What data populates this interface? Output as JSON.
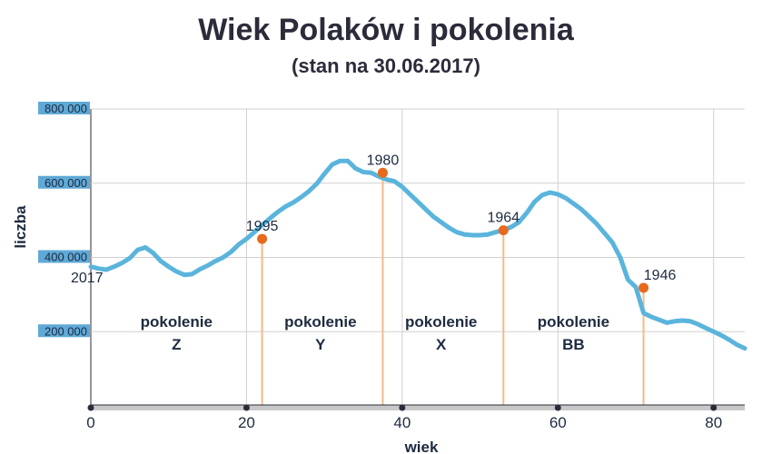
{
  "chart_data": {
    "type": "line",
    "title": "Wiek Polaków i pokolenia",
    "subtitle": "(stan na 30.06.2017)",
    "xlabel": "wiek",
    "ylabel": "liczba",
    "xlim": [
      0,
      84
    ],
    "ylim": [
      0,
      800000
    ],
    "xticks": [
      "0",
      "20",
      "40",
      "60",
      "80"
    ],
    "yticks": [
      "200 000",
      "400 000",
      "600 000",
      "800 000"
    ],
    "grid": true,
    "series": [
      {
        "x": [
          0,
          1,
          2,
          3,
          4,
          5,
          6,
          7,
          8,
          9,
          10,
          11,
          12,
          13,
          14,
          15,
          16,
          17,
          18,
          19,
          20,
          21,
          22,
          23,
          24,
          25,
          26,
          27,
          28,
          29,
          30,
          31,
          32,
          33,
          34,
          35,
          36,
          37,
          38,
          39,
          40,
          41,
          42,
          43,
          44,
          45,
          46,
          47,
          48,
          49,
          50,
          51,
          52,
          53,
          54,
          55,
          56,
          57,
          58,
          59,
          60,
          61,
          62,
          63,
          64,
          65,
          66,
          67,
          68,
          69,
          70,
          71,
          72,
          73,
          74,
          75,
          76,
          77,
          78,
          79,
          80,
          81,
          82,
          83,
          84
        ],
        "y": [
          375000,
          370000,
          367000,
          375000,
          385000,
          398000,
          420000,
          427000,
          412000,
          390000,
          375000,
          362000,
          353000,
          355000,
          368000,
          378000,
          390000,
          400000,
          415000,
          435000,
          450000,
          468000,
          487000,
          505000,
          522000,
          537000,
          548000,
          562000,
          578000,
          598000,
          625000,
          650000,
          660000,
          660000,
          640000,
          630000,
          628000,
          618000,
          610000,
          605000,
          590000,
          570000,
          550000,
          530000,
          510000,
          495000,
          480000,
          468000,
          462000,
          460000,
          460000,
          462000,
          468000,
          474000,
          482000,
          495000,
          520000,
          550000,
          568000,
          575000,
          570000,
          560000,
          545000,
          530000,
          510000,
          490000,
          465000,
          440000,
          400000,
          340000,
          320000,
          250000,
          240000,
          232000,
          224000,
          228000,
          230000,
          228000,
          220000,
          210000,
          200000,
          190000,
          178000,
          165000,
          155000
        ],
        "color": "#5ab4dc"
      }
    ],
    "markers": [
      {
        "label": "1995",
        "x": 22,
        "y": 450000
      },
      {
        "label": "1980",
        "x": 37.5,
        "y": 628000
      },
      {
        "label": "1964",
        "x": 53,
        "y": 473000
      },
      {
        "label": "1946",
        "x": 71,
        "y": 318000
      }
    ],
    "start_label": "2017",
    "generations": [
      {
        "line1": "pokolenie",
        "line2": "Z",
        "x": 11
      },
      {
        "line1": "pokolenie",
        "line2": "Y",
        "x": 29.5
      },
      {
        "line1": "pokolenie",
        "line2": "X",
        "x": 45
      },
      {
        "line1": "pokolenie",
        "line2": "BB",
        "x": 62
      }
    ],
    "colors": {
      "line": "#5ab4dc",
      "marker": "#e8691c",
      "marker_line": "#f5b98a",
      "grid": "#d0d0d0",
      "ytick_bg": "#5fa9d6",
      "axis_bar": "#c8c8c8",
      "axis_dot": "#2b2b3a"
    }
  }
}
